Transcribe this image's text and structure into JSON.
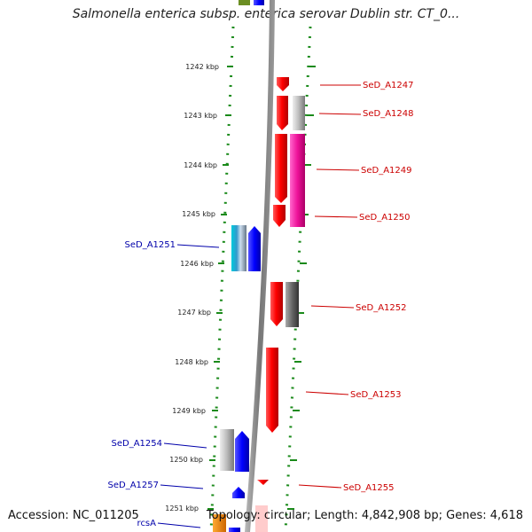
{
  "title": "Salmonella enterica subsp. enterica serovar Dublin str. CT_0...",
  "footer": {
    "accession": "Accession: NC_011205",
    "summary": "Topology: circular; Length: 4,842,908 bp; Genes: 4,618"
  },
  "colors": {
    "forward_label": "#cc0000",
    "reverse_label": "#0000aa",
    "dots": "#1a8a1a",
    "backbone": "#888888"
  },
  "scale": {
    "ticks": [
      "1242 kbp",
      "1243 kbp",
      "1244 kbp",
      "1245 kbp",
      "1246 kbp",
      "1247 kbp",
      "1248 kbp",
      "1249 kbp",
      "1250 kbp",
      "1251 kbp"
    ]
  },
  "forward_genes": [
    {
      "label": "SeD_A1247"
    },
    {
      "label": "SeD_A1248"
    },
    {
      "label": "SeD_A1249"
    },
    {
      "label": "SeD_A1250"
    },
    {
      "label": "SeD_A1252"
    },
    {
      "label": "SeD_A1253"
    },
    {
      "label": "SeD_A1255"
    }
  ],
  "reverse_genes": [
    {
      "label": "SeD_A1251"
    },
    {
      "label": "SeD_A1254"
    },
    {
      "label": "SeD_A1257"
    },
    {
      "label": "rcsA"
    }
  ]
}
